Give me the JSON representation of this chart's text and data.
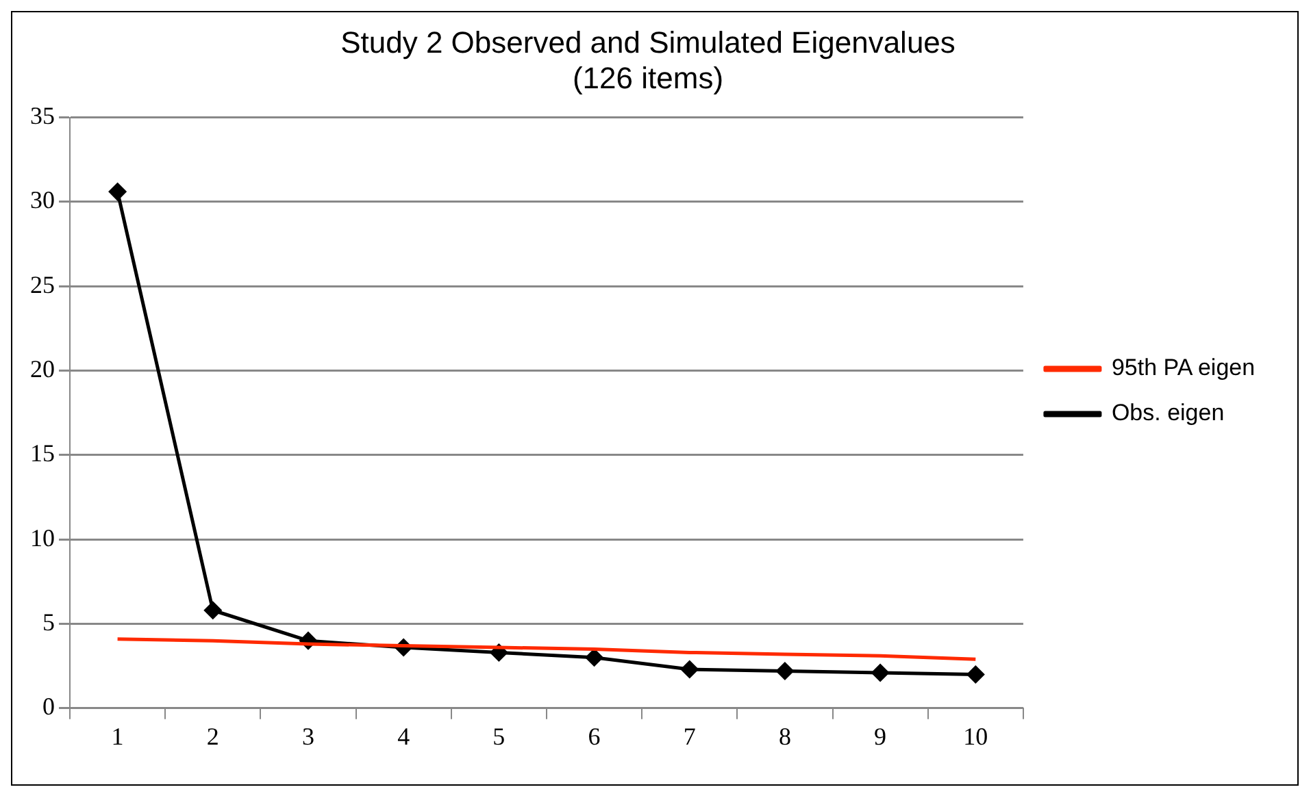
{
  "chart_data": {
    "type": "line",
    "title": [
      "Study 2 Observed and Simulated Eigenvalues",
      "(126 items)"
    ],
    "categories": [
      "1",
      "2",
      "3",
      "4",
      "5",
      "6",
      "7",
      "8",
      "9",
      "10"
    ],
    "series": [
      {
        "name": "Obs. eigen",
        "color": "#000000",
        "marker": "diamond",
        "values": [
          30.6,
          5.8,
          4.0,
          3.6,
          3.3,
          3.0,
          2.3,
          2.2,
          2.1,
          2.0
        ]
      },
      {
        "name": "95th PA eigen",
        "color": "#ff2a00",
        "marker": "none",
        "values": [
          4.1,
          4.0,
          3.8,
          3.7,
          3.6,
          3.5,
          3.3,
          3.2,
          3.1,
          2.9
        ]
      }
    ],
    "ylim": [
      0,
      35
    ],
    "yticks": [
      0,
      5,
      10,
      15,
      20,
      25,
      30,
      35
    ],
    "grid": "y",
    "legend": "right",
    "line_style": "solid"
  }
}
